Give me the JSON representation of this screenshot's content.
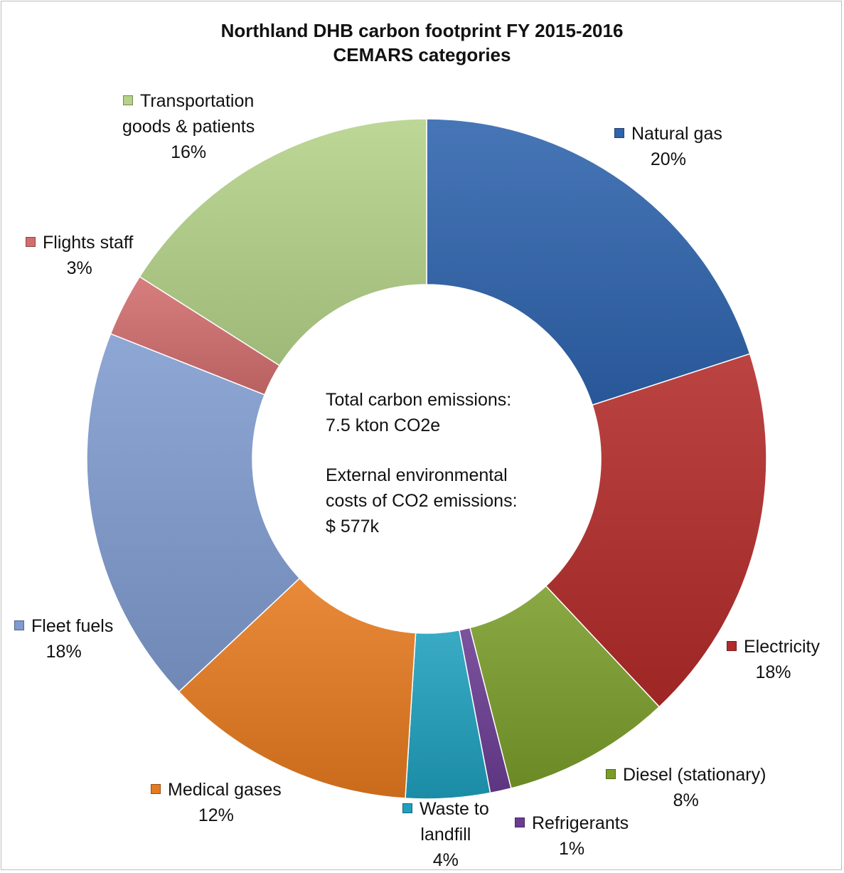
{
  "chart_data": {
    "type": "pie",
    "style": "doughnut",
    "title": "Northland DHB carbon footprint FY 2015-2016",
    "subtitle": "CEMARS categories",
    "legend": "labels beside slices",
    "slices": [
      {
        "label": "Natural gas",
        "label_lines": [
          "Natural gas"
        ],
        "value": 20,
        "percent_label": "20%",
        "color": "#2e63ad"
      },
      {
        "label": "Electricity",
        "label_lines": [
          "Electricity"
        ],
        "value": 18,
        "percent_label": "18%",
        "color": "#b22b29"
      },
      {
        "label": "Diesel (stationary)",
        "label_lines": [
          "Diesel (stationary)"
        ],
        "value": 8,
        "percent_label": "8%",
        "color": "#7a9d2a"
      },
      {
        "label": "Refrigerants",
        "label_lines": [
          "Refrigerants"
        ],
        "value": 1,
        "percent_label": "1%",
        "color": "#6a3c92"
      },
      {
        "label": "Waste to landfill",
        "label_lines": [
          "Waste to",
          "landfill"
        ],
        "value": 4,
        "percent_label": "4%",
        "color": "#1f9fbd"
      },
      {
        "label": "Medical gases",
        "label_lines": [
          "Medical gases"
        ],
        "value": 12,
        "percent_label": "12%",
        "color": "#e57a1f"
      },
      {
        "label": "Fleet fuels",
        "label_lines": [
          "Fleet fuels"
        ],
        "value": 18,
        "percent_label": "18%",
        "color": "#7f9bcf"
      },
      {
        "label": "Flights staff",
        "label_lines": [
          "Flights staff"
        ],
        "value": 3,
        "percent_label": "3%",
        "color": "#d26d6d"
      },
      {
        "label": "Transportation goods & patients",
        "label_lines": [
          "Transportation",
          "goods & patients"
        ],
        "value": 16,
        "percent_label": "16%",
        "color": "#b4d288"
      }
    ],
    "center_text": {
      "line1": "Total carbon emissions:",
      "line2": "7.5 kton CO2e",
      "line3": "External environmental",
      "line4": "costs of CO2 emissions:",
      "line5": "$ 577k"
    }
  }
}
